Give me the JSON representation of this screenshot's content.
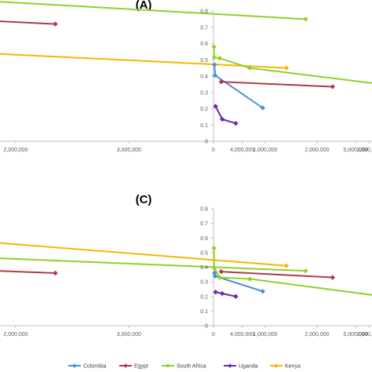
{
  "legend": {
    "entries": [
      {
        "name": "Colombia",
        "color": "#4a90d9",
        "marker": "diamond"
      },
      {
        "name": "Egypt",
        "color": "#b03a48",
        "marker": "diamond"
      },
      {
        "name": "South Africa",
        "color": "#8fd12a",
        "marker": "diamond"
      },
      {
        "name": "Uganda",
        "color": "#6a2bb0",
        "marker": "diamond"
      },
      {
        "name": "Kenya",
        "color": "#f5b700",
        "marker": "diamond"
      }
    ],
    "placement": "bottom"
  },
  "chart_data": [
    {
      "panel_label": "(A)",
      "type": "line",
      "xlim": [
        0,
        5000000
      ],
      "x_ticks": [
        "2,000,000",
        "3,000,000",
        "4,000,000",
        "5,000,000"
      ],
      "x_tick_values": [
        2000000,
        3000000,
        4000000,
        5000000
      ],
      "ylim": [
        0,
        0.8
      ],
      "y_ticks": [],
      "show_y_ticks": false,
      "grid": false,
      "series": [
        {
          "name": "Egypt",
          "color": "#b03a48",
          "points": [
            [
              0,
              0.8
            ],
            [
              2350000,
              0.72
            ]
          ]
        },
        {
          "name": "South Africa",
          "color": "#8fd12a",
          "points": [
            [
              0,
              0.93
            ],
            [
              4560000,
              0.75
            ]
          ]
        },
        {
          "name": "Kenya",
          "color": "#f5b700",
          "points": [
            [
              0,
              0.6
            ],
            [
              4390000,
              0.45
            ]
          ]
        }
      ]
    },
    {
      "panel_label": "",
      "type": "line",
      "xlim": [
        0,
        3500000
      ],
      "x_ticks": [
        "0",
        "1,000,000",
        "2,000,000",
        "3,000,000"
      ],
      "x_tick_values": [
        0,
        1000000,
        2000000,
        3000000
      ],
      "ylim": [
        0,
        0.8
      ],
      "y_ticks": [
        "0",
        "0.1",
        "0.2",
        "0.3",
        "0.4",
        "0.5",
        "0.6",
        "0.7",
        "0.8"
      ],
      "y_tick_values": [
        0,
        0.1,
        0.2,
        0.3,
        0.4,
        0.5,
        0.6,
        0.7,
        0.8
      ],
      "show_y_ticks": true,
      "grid": false,
      "series": [
        {
          "name": "Colombia",
          "color": "#4a90d9",
          "points": [
            [
              20000,
              0.47
            ],
            [
              30000,
              0.405
            ],
            [
              950000,
              0.205
            ]
          ]
        },
        {
          "name": "Egypt",
          "color": "#b03a48",
          "points": [
            [
              150000,
              0.365
            ],
            [
              2300000,
              0.335
            ]
          ]
        },
        {
          "name": "South Africa",
          "color": "#8fd12a",
          "points": [
            [
              10000,
              0.58
            ],
            [
              15000,
              0.515
            ],
            [
              120000,
              0.51
            ],
            [
              700000,
              0.45
            ],
            [
              3500000,
              0.34
            ]
          ]
        },
        {
          "name": "Uganda",
          "color": "#6a2bb0",
          "points": [
            [
              40000,
              0.215
            ],
            [
              170000,
              0.135
            ],
            [
              430000,
              0.11
            ]
          ]
        }
      ]
    },
    {
      "panel_label": "(C)",
      "type": "line",
      "xlim": [
        0,
        5000000
      ],
      "x_ticks": [
        "2,000,000",
        "3,000,000",
        "4,000,000",
        "5,000,000"
      ],
      "x_tick_values": [
        2000000,
        3000000,
        4000000,
        5000000
      ],
      "ylim": [
        0,
        0.8
      ],
      "y_ticks": [],
      "show_y_ticks": false,
      "grid": false,
      "series": [
        {
          "name": "Egypt",
          "color": "#b03a48",
          "points": [
            [
              0,
              0.43
            ],
            [
              2350000,
              0.36
            ]
          ]
        },
        {
          "name": "South Africa",
          "color": "#8fd12a",
          "points": [
            [
              0,
              0.52
            ],
            [
              4560000,
              0.375
            ]
          ]
        },
        {
          "name": "Kenya",
          "color": "#f5b700",
          "points": [
            [
              0,
              0.68
            ],
            [
              4390000,
              0.41
            ]
          ]
        }
      ]
    },
    {
      "panel_label": "",
      "type": "line",
      "xlim": [
        0,
        3500000
      ],
      "x_ticks": [
        "0",
        "1,000,000",
        "2,000,000",
        "3,000,000"
      ],
      "x_tick_values": [
        0,
        1000000,
        2000000,
        3000000
      ],
      "ylim": [
        0,
        0.8
      ],
      "y_ticks": [
        "0",
        "0.1",
        "0.2",
        "0.3",
        "0.4",
        "0.5",
        "0.6",
        "0.7",
        "0.8"
      ],
      "y_tick_values": [
        0,
        0.1,
        0.2,
        0.3,
        0.4,
        0.5,
        0.6,
        0.7,
        0.8
      ],
      "show_y_ticks": true,
      "grid": false,
      "series": [
        {
          "name": "Colombia",
          "color": "#4a90d9",
          "points": [
            [
              20000,
              0.36
            ],
            [
              30000,
              0.34
            ],
            [
              950000,
              0.235
            ]
          ]
        },
        {
          "name": "Egypt",
          "color": "#b03a48",
          "points": [
            [
              150000,
              0.37
            ],
            [
              2300000,
              0.33
            ]
          ]
        },
        {
          "name": "South Africa",
          "color": "#8fd12a",
          "points": [
            [
              10000,
              0.53
            ],
            [
              15000,
              0.395
            ],
            [
              120000,
              0.33
            ],
            [
              700000,
              0.32
            ],
            [
              3500000,
              0.19
            ]
          ]
        },
        {
          "name": "Uganda",
          "color": "#6a2bb0",
          "points": [
            [
              40000,
              0.23
            ],
            [
              170000,
              0.22
            ],
            [
              430000,
              0.2
            ]
          ]
        }
      ]
    }
  ]
}
